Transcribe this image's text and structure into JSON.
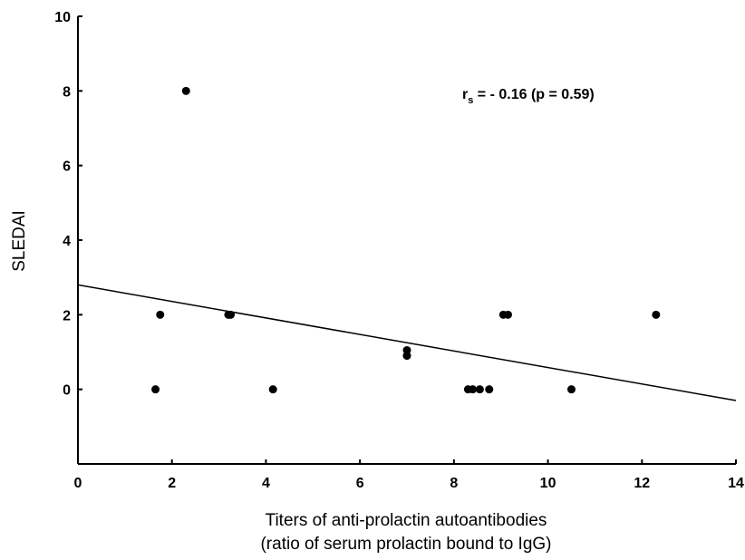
{
  "chart_data": {
    "type": "scatter",
    "title": "",
    "xlabel": [
      "Titers of anti-prolactin autoantibodies",
      "(ratio of serum prolactin bound to IgG)"
    ],
    "ylabel": "SLEDAI",
    "xlim": [
      0,
      14
    ],
    "ylim": [
      -2,
      10
    ],
    "xticks": [
      0,
      2,
      4,
      6,
      8,
      10,
      12,
      14
    ],
    "yticks": [
      0,
      2,
      4,
      6,
      8,
      10
    ],
    "grid": false,
    "annotation": {
      "r": "r",
      "sub": "s",
      "rest": " = - 0.16 (p = 0.59)"
    },
    "series": [
      {
        "name": "",
        "points": [
          {
            "x": 1.65,
            "y": 0
          },
          {
            "x": 1.75,
            "y": 2
          },
          {
            "x": 2.3,
            "y": 8
          },
          {
            "x": 3.2,
            "y": 2
          },
          {
            "x": 3.25,
            "y": 2
          },
          {
            "x": 4.15,
            "y": 0
          },
          {
            "x": 7.0,
            "y": 0.9
          },
          {
            "x": 7.0,
            "y": 1.05
          },
          {
            "x": 8.3,
            "y": 0
          },
          {
            "x": 8.4,
            "y": 0
          },
          {
            "x": 8.55,
            "y": 0
          },
          {
            "x": 8.75,
            "y": 0
          },
          {
            "x": 9.05,
            "y": 2
          },
          {
            "x": 9.15,
            "y": 2
          },
          {
            "x": 10.5,
            "y": 0
          },
          {
            "x": 12.3,
            "y": 2
          }
        ]
      }
    ],
    "trendline": {
      "x": [
        0,
        14
      ],
      "y": [
        2.8,
        -0.3
      ]
    },
    "colors": {
      "marker": "#000000",
      "line": "#000000",
      "axis": "#000000"
    }
  }
}
